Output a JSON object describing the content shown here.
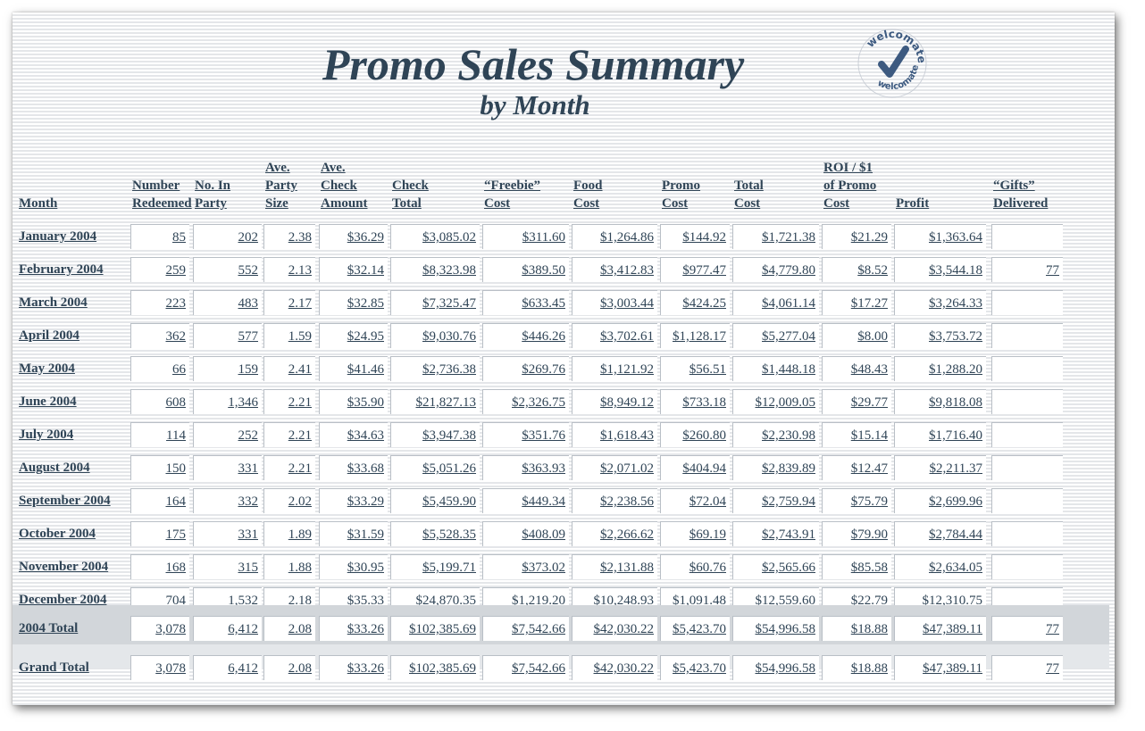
{
  "title": "Promo Sales Summary",
  "subtitle": "by Month",
  "logo": {
    "text_top": "welcomate",
    "text_bottom": "welcomate",
    "icon": "checkmark-icon",
    "color": "#3d5a80"
  },
  "colors": {
    "text": "#2f4456",
    "total_band": "#d2d6da",
    "cell_bg": "#ffffff"
  },
  "columns": [
    {
      "lines": [
        "Month"
      ]
    },
    {
      "lines": [
        "Number",
        "Redeemed"
      ]
    },
    {
      "lines": [
        "No. In",
        "Party"
      ]
    },
    {
      "lines": [
        "Ave.",
        "Party",
        "Size"
      ]
    },
    {
      "lines": [
        "Ave.",
        "Check",
        "Amount"
      ]
    },
    {
      "lines": [
        "Check",
        "Total"
      ]
    },
    {
      "lines": [
        "“Freebie”",
        "Cost"
      ]
    },
    {
      "lines": [
        "Food",
        "Cost"
      ]
    },
    {
      "lines": [
        "Promo",
        "Cost"
      ]
    },
    {
      "lines": [
        "Total",
        "Cost"
      ]
    },
    {
      "lines": [
        "ROI / $1",
        "of Promo",
        "Cost"
      ]
    },
    {
      "lines": [
        "Profit"
      ]
    },
    {
      "lines": [
        "“Gifts”",
        "Delivered"
      ]
    }
  ],
  "rows": [
    {
      "month": "January 2004",
      "values": [
        "85",
        "202",
        "2.38",
        "$36.29",
        "$3,085.02",
        "$311.60",
        "$1,264.86",
        "$144.92",
        "$1,721.38",
        "$21.29",
        "$1,363.64",
        ""
      ]
    },
    {
      "month": "February 2004",
      "values": [
        "259",
        "552",
        "2.13",
        "$32.14",
        "$8,323.98",
        "$389.50",
        "$3,412.83",
        "$977.47",
        "$4,779.80",
        "$8.52",
        "$3,544.18",
        "77"
      ]
    },
    {
      "month": "March 2004",
      "values": [
        "223",
        "483",
        "2.17",
        "$32.85",
        "$7,325.47",
        "$633.45",
        "$3,003.44",
        "$424.25",
        "$4,061.14",
        "$17.27",
        "$3,264.33",
        ""
      ]
    },
    {
      "month": "April 2004",
      "values": [
        "362",
        "577",
        "1.59",
        "$24.95",
        "$9,030.76",
        "$446.26",
        "$3,702.61",
        "$1,128.17",
        "$5,277.04",
        "$8.00",
        "$3,753.72",
        ""
      ]
    },
    {
      "month": "May 2004",
      "values": [
        "66",
        "159",
        "2.41",
        "$41.46",
        "$2,736.38",
        "$269.76",
        "$1,121.92",
        "$56.51",
        "$1,448.18",
        "$48.43",
        "$1,288.20",
        ""
      ]
    },
    {
      "month": "June 2004",
      "values": [
        "608",
        "1,346",
        "2.21",
        "$35.90",
        "$21,827.13",
        "$2,326.75",
        "$8,949.12",
        "$733.18",
        "$12,009.05",
        "$29.77",
        "$9,818.08",
        ""
      ]
    },
    {
      "month": "July 2004",
      "values": [
        "114",
        "252",
        "2.21",
        "$34.63",
        "$3,947.38",
        "$351.76",
        "$1,618.43",
        "$260.80",
        "$2,230.98",
        "$15.14",
        "$1,716.40",
        ""
      ]
    },
    {
      "month": "August 2004",
      "values": [
        "150",
        "331",
        "2.21",
        "$33.68",
        "$5,051.26",
        "$363.93",
        "$2,071.02",
        "$404.94",
        "$2,839.89",
        "$12.47",
        "$2,211.37",
        ""
      ]
    },
    {
      "month": "September 2004",
      "values": [
        "164",
        "332",
        "2.02",
        "$33.29",
        "$5,459.90",
        "$449.34",
        "$2,238.56",
        "$72.04",
        "$2,759.94",
        "$75.79",
        "$2,699.96",
        ""
      ]
    },
    {
      "month": "October 2004",
      "values": [
        "175",
        "331",
        "1.89",
        "$31.59",
        "$5,528.35",
        "$408.09",
        "$2,266.62",
        "$69.19",
        "$2,743.91",
        "$79.90",
        "$2,784.44",
        ""
      ]
    },
    {
      "month": "November 2004",
      "values": [
        "168",
        "315",
        "1.88",
        "$30.95",
        "$5,199.71",
        "$373.02",
        "$2,131.88",
        "$60.76",
        "$2,565.66",
        "$85.58",
        "$2,634.05",
        ""
      ]
    },
    {
      "month": "December 2004",
      "values": [
        "704",
        "1,532",
        "2.18",
        "$35.33",
        "$24,870.35",
        "$1,219.20",
        "$10,248.93",
        "$1,091.48",
        "$12,559.60",
        "$22.79",
        "$12,310.75",
        ""
      ]
    }
  ],
  "totals": [
    {
      "month": "2004 Total",
      "values": [
        "3,078",
        "6,412",
        "2.08",
        "$33.26",
        "$102,385.69",
        "$7,542.66",
        "$42,030.22",
        "$5,423.70",
        "$54,996.58",
        "$18.88",
        "$47,389.11",
        "77"
      ]
    },
    {
      "month": "Grand Total",
      "values": [
        "3,078",
        "6,412",
        "2.08",
        "$33.26",
        "$102,385.69",
        "$7,542.66",
        "$42,030.22",
        "$5,423.70",
        "$54,996.58",
        "$18.88",
        "$47,389.11",
        "77"
      ]
    }
  ]
}
